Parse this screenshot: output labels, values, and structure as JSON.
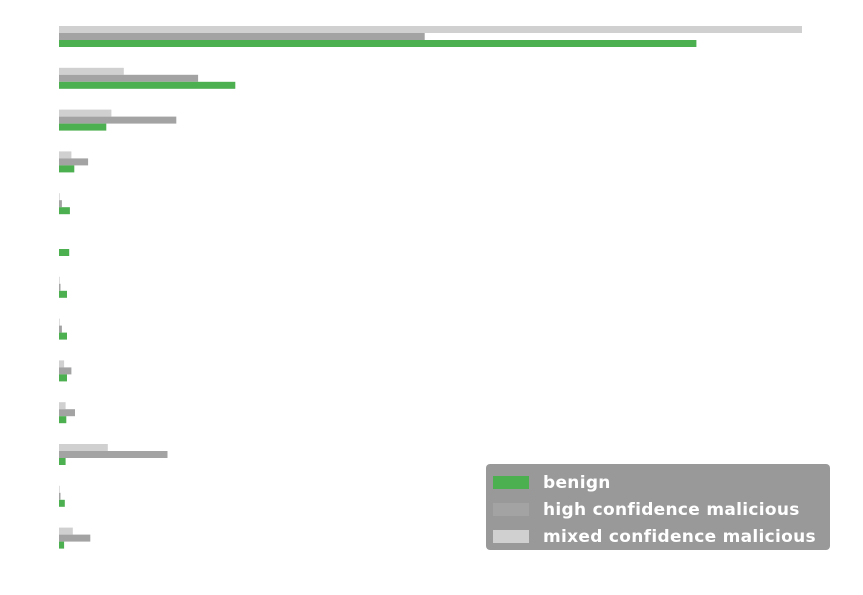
{
  "chart_data": {
    "type": "bar",
    "orientation": "horizontal",
    "grid": false,
    "legend_position": "lower-right",
    "title": "",
    "xlabel": "",
    "ylabel": "",
    "xlim": [
      0,
      1020
    ],
    "category_count": 13,
    "series": [
      {
        "name": "benign",
        "color": "#4caf50",
        "values": [
          875,
          242,
          65,
          21,
          15,
          14,
          11,
          11,
          11,
          10,
          9,
          8,
          7
        ]
      },
      {
        "name": "high confidence malicious",
        "color": "#a3a3a3",
        "values": [
          502,
          191,
          161,
          40,
          4,
          0,
          2,
          4,
          17,
          22,
          149,
          2,
          43
        ]
      },
      {
        "name": "mixed confidence malicious",
        "color": "#d0d0d0",
        "values": [
          1020,
          89,
          72,
          17,
          1,
          0,
          1,
          1,
          7,
          9,
          67,
          1,
          19
        ]
      }
    ]
  }
}
